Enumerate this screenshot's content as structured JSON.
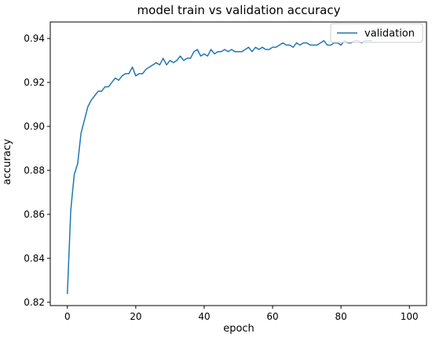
{
  "chart_data": {
    "type": "line",
    "title": "model train vs validation accuracy",
    "xlabel": "epoch",
    "ylabel": "accuracy",
    "xlim": [
      -5,
      105
    ],
    "ylim": [
      0.8185,
      0.9475
    ],
    "xticks": [
      0,
      20,
      40,
      60,
      80,
      100
    ],
    "xtick_labels": [
      "0",
      "20",
      "40",
      "60",
      "80",
      "100"
    ],
    "yticks": [
      0.82,
      0.84,
      0.86,
      0.88,
      0.9,
      0.92,
      0.94
    ],
    "ytick_labels": [
      "0.82",
      "0.84",
      "0.86",
      "0.88",
      "0.90",
      "0.92",
      "0.94"
    ],
    "grid": false,
    "legend": {
      "placement": "top-right"
    },
    "series": [
      {
        "name": "validation",
        "color": "#1f77b4",
        "x": [
          0,
          1,
          2,
          3,
          4,
          5,
          6,
          7,
          8,
          9,
          10,
          11,
          12,
          13,
          14,
          15,
          16,
          17,
          18,
          19,
          20,
          21,
          22,
          23,
          24,
          25,
          26,
          27,
          28,
          29,
          30,
          31,
          32,
          33,
          34,
          35,
          36,
          37,
          38,
          39,
          40,
          41,
          42,
          43,
          44,
          45,
          46,
          47,
          48,
          49,
          50,
          51,
          52,
          53,
          54,
          55,
          56,
          57,
          58,
          59,
          60,
          61,
          62,
          63,
          64,
          65,
          66,
          67,
          68,
          69,
          70,
          71,
          72,
          73,
          74,
          75,
          76,
          77,
          78,
          79,
          80,
          81,
          82,
          83,
          84,
          85,
          86,
          87,
          88,
          89
        ],
        "y": [
          0.824,
          0.862,
          0.878,
          0.883,
          0.897,
          0.903,
          0.909,
          0.912,
          0.914,
          0.916,
          0.916,
          0.918,
          0.918,
          0.92,
          0.922,
          0.921,
          0.923,
          0.924,
          0.924,
          0.927,
          0.923,
          0.924,
          0.924,
          0.926,
          0.927,
          0.928,
          0.929,
          0.928,
          0.931,
          0.928,
          0.93,
          0.929,
          0.93,
          0.932,
          0.93,
          0.931,
          0.931,
          0.934,
          0.935,
          0.932,
          0.933,
          0.932,
          0.935,
          0.933,
          0.934,
          0.934,
          0.935,
          0.934,
          0.935,
          0.934,
          0.934,
          0.934,
          0.935,
          0.936,
          0.934,
          0.936,
          0.935,
          0.936,
          0.935,
          0.935,
          0.936,
          0.936,
          0.937,
          0.938,
          0.937,
          0.937,
          0.936,
          0.938,
          0.937,
          0.938,
          0.938,
          0.937,
          0.937,
          0.937,
          0.938,
          0.939,
          0.937,
          0.937,
          0.938,
          0.938,
          0.937,
          0.939,
          0.938,
          0.938,
          0.939,
          0.939,
          0.938,
          0.939,
          0.939,
          0.939
        ]
      }
    ]
  }
}
